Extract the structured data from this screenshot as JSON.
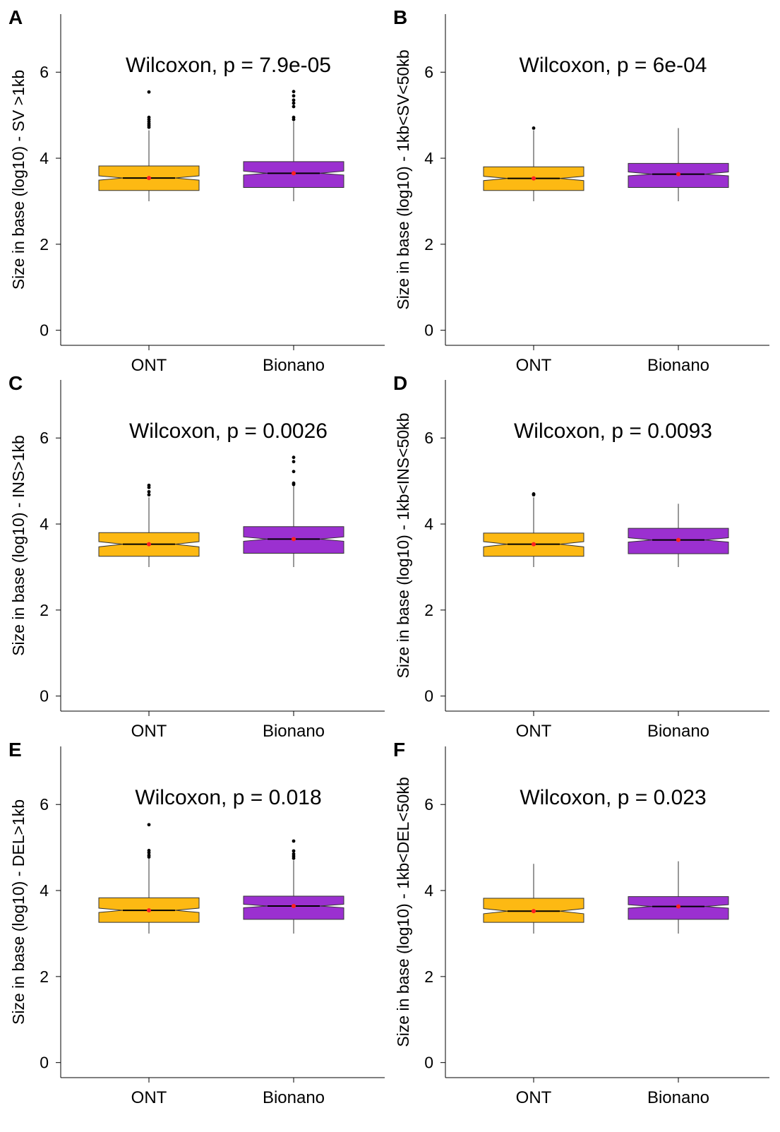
{
  "colors": {
    "ONT": "#FDB913",
    "Bionano": "#9B30D0",
    "mean": "#FF2020",
    "outlier": "#000000",
    "axis": "#000000"
  },
  "chart_data": [
    {
      "panel": "A",
      "type": "boxplot",
      "notched": true,
      "ylabel": "Size in base (log10) - SV >1kb",
      "annotation": "Wilcoxon, p = 7.9e-05",
      "categories": [
        "ONT",
        "Bionano"
      ],
      "yticks": [
        0,
        2,
        4,
        6
      ],
      "ylim": [
        -0.35,
        7.35
      ],
      "boxes": [
        {
          "name": "ONT",
          "whisker_low": 3.0,
          "q1": 3.25,
          "median": 3.54,
          "q3": 3.82,
          "whisker_high": 4.65,
          "mean": 3.54,
          "notch_low": 3.49,
          "notch_high": 3.59,
          "outliers": [
            4.72,
            4.76,
            4.8,
            4.85,
            4.9,
            4.95,
            5.54
          ]
        },
        {
          "name": "Bionano",
          "whisker_low": 3.0,
          "q1": 3.32,
          "median": 3.65,
          "q3": 3.92,
          "whisker_high": 4.85,
          "mean": 3.65,
          "notch_low": 3.61,
          "notch_high": 3.7,
          "outliers": [
            4.9,
            4.95,
            5.2,
            5.28,
            5.35,
            5.45,
            5.55
          ]
        }
      ]
    },
    {
      "panel": "B",
      "type": "boxplot",
      "notched": true,
      "ylabel": "Size in base (log10) - 1kb<SV<50kb",
      "annotation": "Wilcoxon, p = 6e-04",
      "categories": [
        "ONT",
        "Bionano"
      ],
      "yticks": [
        0,
        2,
        4,
        6
      ],
      "ylim": [
        -0.35,
        7.35
      ],
      "boxes": [
        {
          "name": "ONT",
          "whisker_low": 3.0,
          "q1": 3.25,
          "median": 3.53,
          "q3": 3.8,
          "whisker_high": 4.65,
          "mean": 3.53,
          "notch_low": 3.48,
          "notch_high": 3.58,
          "outliers": [
            4.7
          ]
        },
        {
          "name": "Bionano",
          "whisker_low": 3.0,
          "q1": 3.32,
          "median": 3.63,
          "q3": 3.88,
          "whisker_high": 4.7,
          "mean": 3.63,
          "notch_low": 3.59,
          "notch_high": 3.68,
          "outliers": []
        }
      ]
    },
    {
      "panel": "C",
      "type": "boxplot",
      "notched": true,
      "ylabel": "Size in base (log10) - INS>1kb",
      "annotation": "Wilcoxon, p = 0.0026",
      "categories": [
        "ONT",
        "Bionano"
      ],
      "yticks": [
        0,
        2,
        4,
        6
      ],
      "ylim": [
        -0.35,
        7.35
      ],
      "boxes": [
        {
          "name": "ONT",
          "whisker_low": 3.0,
          "q1": 3.25,
          "median": 3.53,
          "q3": 3.8,
          "whisker_high": 4.62,
          "mean": 3.53,
          "notch_low": 3.47,
          "notch_high": 3.59,
          "outliers": [
            4.68,
            4.75,
            4.85,
            4.9
          ]
        },
        {
          "name": "Bionano",
          "whisker_low": 3.0,
          "q1": 3.32,
          "median": 3.65,
          "q3": 3.94,
          "whisker_high": 4.9,
          "mean": 3.65,
          "notch_low": 3.6,
          "notch_high": 3.7,
          "outliers": [
            4.92,
            4.95,
            5.22,
            5.45,
            5.55
          ]
        }
      ]
    },
    {
      "panel": "D",
      "type": "boxplot",
      "notched": true,
      "ylabel": "Size in base (log10) - 1kb<INS<50kb",
      "annotation": "Wilcoxon, p = 0.0093",
      "categories": [
        "ONT",
        "Bionano"
      ],
      "yticks": [
        0,
        2,
        4,
        6
      ],
      "ylim": [
        -0.35,
        7.35
      ],
      "boxes": [
        {
          "name": "ONT",
          "whisker_low": 3.0,
          "q1": 3.25,
          "median": 3.53,
          "q3": 3.79,
          "whisker_high": 4.62,
          "mean": 3.53,
          "notch_low": 3.47,
          "notch_high": 3.59,
          "outliers": [
            4.68,
            4.7
          ]
        },
        {
          "name": "Bionano",
          "whisker_low": 3.0,
          "q1": 3.31,
          "median": 3.63,
          "q3": 3.9,
          "whisker_high": 4.47,
          "mean": 3.63,
          "notch_low": 3.58,
          "notch_high": 3.68,
          "outliers": []
        }
      ]
    },
    {
      "panel": "E",
      "type": "boxplot",
      "notched": true,
      "ylabel": "Size in base (log10) - DEL>1kb",
      "annotation": "Wilcoxon, p = 0.018",
      "categories": [
        "ONT",
        "Bionano"
      ],
      "yticks": [
        0,
        2,
        4,
        6
      ],
      "ylim": [
        -0.35,
        7.35
      ],
      "boxes": [
        {
          "name": "ONT",
          "whisker_low": 3.0,
          "q1": 3.26,
          "median": 3.54,
          "q3": 3.83,
          "whisker_high": 4.75,
          "mean": 3.54,
          "notch_low": 3.49,
          "notch_high": 3.59,
          "outliers": [
            4.78,
            4.82,
            4.88,
            4.93,
            5.53
          ]
        },
        {
          "name": "Bionano",
          "whisker_low": 3.0,
          "q1": 3.33,
          "median": 3.64,
          "q3": 3.87,
          "whisker_high": 4.7,
          "mean": 3.64,
          "notch_low": 3.6,
          "notch_high": 3.68,
          "outliers": [
            4.75,
            4.8,
            4.85,
            4.92,
            5.15
          ]
        }
      ]
    },
    {
      "panel": "F",
      "type": "boxplot",
      "notched": true,
      "ylabel": "Size in base (log10) - 1kb<DEL<50kb",
      "annotation": "Wilcoxon, p = 0.023",
      "categories": [
        "ONT",
        "Bionano"
      ],
      "yticks": [
        0,
        2,
        4,
        6
      ],
      "ylim": [
        -0.35,
        7.35
      ],
      "boxes": [
        {
          "name": "ONT",
          "whisker_low": 3.0,
          "q1": 3.26,
          "median": 3.52,
          "q3": 3.82,
          "whisker_high": 4.62,
          "mean": 3.52,
          "notch_low": 3.46,
          "notch_high": 3.58,
          "outliers": []
        },
        {
          "name": "Bionano",
          "whisker_low": 3.0,
          "q1": 3.33,
          "median": 3.63,
          "q3": 3.86,
          "whisker_high": 4.68,
          "mean": 3.63,
          "notch_low": 3.59,
          "notch_high": 3.67,
          "outliers": []
        }
      ]
    }
  ]
}
